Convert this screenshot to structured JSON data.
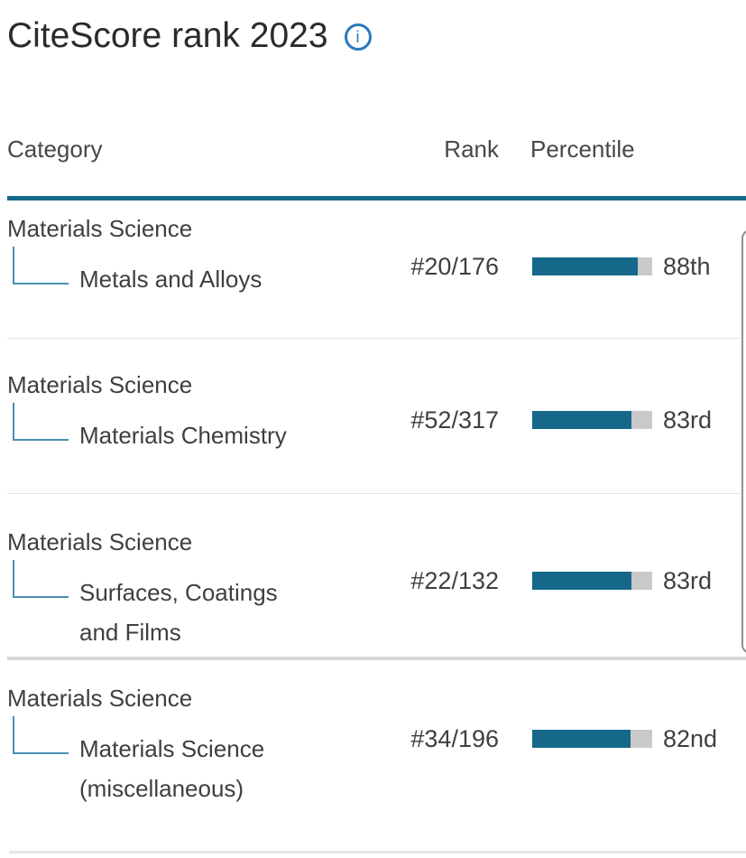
{
  "section": {
    "title": "CiteScore rank 2023",
    "info_icon_glyph": "i"
  },
  "table": {
    "headers": {
      "category": "Category",
      "rank": "Rank",
      "percentile": "Percentile"
    },
    "rows": [
      {
        "parent": "Materials Science",
        "child": "Metals and Alloys",
        "rank": "#20/176",
        "percentile_label": "88th",
        "percentile_value": 88
      },
      {
        "parent": "Materials Science",
        "child": "Materials Chemistry",
        "rank": "#52/317",
        "percentile_label": "83rd",
        "percentile_value": 83
      },
      {
        "parent": "Materials Science",
        "child": "Surfaces, Coatings and Films",
        "rank": "#22/132",
        "percentile_label": "83rd",
        "percentile_value": 83
      },
      {
        "parent": "Materials Science",
        "child": "Materials Science (miscellaneous)",
        "rank": "#34/196",
        "percentile_label": "82nd",
        "percentile_value": 82
      }
    ]
  },
  "colors": {
    "accent": "#15688a",
    "track": "#c9c9c9",
    "info": "#2b79bd",
    "connector": "#4a8fb3",
    "heading": "#2b2b2b",
    "body-text": "#3f3f3f",
    "divider": "#e4e4e4",
    "divider-thick": "#d9d9d9",
    "panel-edge": "#8f8f8f"
  }
}
